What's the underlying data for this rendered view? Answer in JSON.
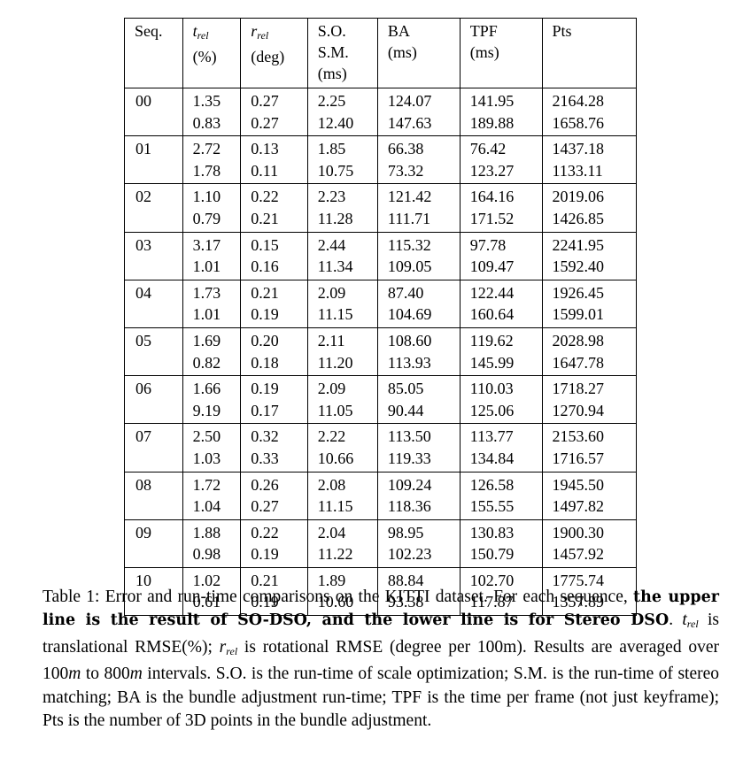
{
  "table": {
    "headers": [
      {
        "lines": [
          "Seq."
        ]
      },
      {
        "var": "t",
        "sub": "rel",
        "lines": [
          "(%)"
        ]
      },
      {
        "var": "r",
        "sub": "rel",
        "lines": [
          "(deg)"
        ]
      },
      {
        "lines": [
          "S.O.",
          "S.M.",
          "(ms)"
        ]
      },
      {
        "lines": [
          "BA",
          "(ms)"
        ]
      },
      {
        "lines": [
          "TPF",
          "(ms)"
        ]
      },
      {
        "lines": [
          "Pts"
        ]
      }
    ],
    "rows": [
      {
        "seq": "00",
        "upper": [
          {
            "v": "1.35",
            "b": false
          },
          {
            "v": "0.27",
            "b": false
          },
          {
            "v": "2.25",
            "b": true
          },
          {
            "v": "124.07",
            "b": true
          },
          {
            "v": "141.95",
            "b": true
          },
          {
            "v": "2164.28",
            "b": false
          }
        ],
        "lower": [
          {
            "v": "0.83",
            "b": true
          },
          {
            "v": "0.27",
            "b": false
          },
          {
            "v": "12.40",
            "b": false
          },
          {
            "v": "147.63",
            "b": false
          },
          {
            "v": "189.88",
            "b": false
          },
          {
            "v": "1658.76",
            "b": false
          }
        ]
      },
      {
        "seq": "01",
        "upper": [
          {
            "v": "2.72",
            "b": false
          },
          {
            "v": "0.13",
            "b": false
          },
          {
            "v": "1.85",
            "b": true
          },
          {
            "v": "66.38",
            "b": true
          },
          {
            "v": "76.42",
            "b": true
          },
          {
            "v": "1437.18",
            "b": false
          }
        ],
        "lower": [
          {
            "v": "1.78",
            "b": true
          },
          {
            "v": "0.11",
            "b": true
          },
          {
            "v": "10.75",
            "b": false
          },
          {
            "v": "73.32",
            "b": false
          },
          {
            "v": "123.27",
            "b": false
          },
          {
            "v": "1133.11",
            "b": false
          }
        ]
      },
      {
        "seq": "02",
        "upper": [
          {
            "v": "1.10",
            "b": false
          },
          {
            "v": "0.22",
            "b": false
          },
          {
            "v": "2.23",
            "b": true
          },
          {
            "v": "121.42",
            "b": false
          },
          {
            "v": "164.16",
            "b": true
          },
          {
            "v": "2019.06",
            "b": false
          }
        ],
        "lower": [
          {
            "v": "0.79",
            "b": true
          },
          {
            "v": "0.21",
            "b": true
          },
          {
            "v": "11.28",
            "b": false
          },
          {
            "v": "111.71",
            "b": true
          },
          {
            "v": "171.52",
            "b": false
          },
          {
            "v": "1426.85",
            "b": false
          }
        ]
      },
      {
        "seq": "03",
        "upper": [
          {
            "v": "3.17",
            "b": false
          },
          {
            "v": "0.15",
            "b": true
          },
          {
            "v": "2.44",
            "b": true
          },
          {
            "v": "115.32",
            "b": false
          },
          {
            "v": "97.78",
            "b": true
          },
          {
            "v": "2241.95",
            "b": false
          }
        ],
        "lower": [
          {
            "v": "1.01",
            "b": true
          },
          {
            "v": "0.16",
            "b": false
          },
          {
            "v": "11.34",
            "b": false
          },
          {
            "v": "109.05",
            "b": true
          },
          {
            "v": "109.47",
            "b": false
          },
          {
            "v": "1592.40",
            "b": false
          }
        ]
      },
      {
        "seq": "04",
        "upper": [
          {
            "v": "1.73",
            "b": false
          },
          {
            "v": "0.21",
            "b": false
          },
          {
            "v": "2.09",
            "b": true
          },
          {
            "v": "87.40",
            "b": true
          },
          {
            "v": "122.44",
            "b": true
          },
          {
            "v": "1926.45",
            "b": false
          }
        ],
        "lower": [
          {
            "v": "1.01",
            "b": true
          },
          {
            "v": "0.19",
            "b": true
          },
          {
            "v": "11.15",
            "b": false
          },
          {
            "v": "104.69",
            "b": false
          },
          {
            "v": "160.64",
            "b": false
          },
          {
            "v": "1599.01",
            "b": false
          }
        ]
      },
      {
        "seq": "05",
        "upper": [
          {
            "v": "1.69",
            "b": false
          },
          {
            "v": "0.20",
            "b": false
          },
          {
            "v": "2.11",
            "b": true
          },
          {
            "v": "108.60",
            "b": true
          },
          {
            "v": "119.62",
            "b": true
          },
          {
            "v": "2028.98",
            "b": false
          }
        ],
        "lower": [
          {
            "v": "0.82",
            "b": true
          },
          {
            "v": "0.18",
            "b": true
          },
          {
            "v": "11.20",
            "b": false
          },
          {
            "v": "113.93",
            "b": false
          },
          {
            "v": "145.99",
            "b": false
          },
          {
            "v": "1647.78",
            "b": false
          }
        ]
      },
      {
        "seq": "06",
        "upper": [
          {
            "v": "1.66",
            "b": true
          },
          {
            "v": "0.19",
            "b": false
          },
          {
            "v": "2.09",
            "b": true
          },
          {
            "v": "85.05",
            "b": true
          },
          {
            "v": "110.03",
            "b": true
          },
          {
            "v": "1718.27",
            "b": false
          }
        ],
        "lower": [
          {
            "v": "9.19",
            "b": false
          },
          {
            "v": "0.17",
            "b": true
          },
          {
            "v": "11.05",
            "b": false
          },
          {
            "v": "90.44",
            "b": false
          },
          {
            "v": "125.06",
            "b": false
          },
          {
            "v": "1270.94",
            "b": false
          }
        ]
      },
      {
        "seq": "07",
        "upper": [
          {
            "v": "2.50",
            "b": false
          },
          {
            "v": "0.32",
            "b": true
          },
          {
            "v": "2.22",
            "b": true
          },
          {
            "v": "113.50",
            "b": true
          },
          {
            "v": "113.77",
            "b": true
          },
          {
            "v": "2153.60",
            "b": false
          }
        ],
        "lower": [
          {
            "v": "1.03",
            "b": true
          },
          {
            "v": "0.33",
            "b": false
          },
          {
            "v": "10.66",
            "b": false
          },
          {
            "v": "119.33",
            "b": false
          },
          {
            "v": "134.84",
            "b": false
          },
          {
            "v": "1716.57",
            "b": false
          }
        ]
      },
      {
        "seq": "08",
        "upper": [
          {
            "v": "1.72",
            "b": false
          },
          {
            "v": "0.26",
            "b": true
          },
          {
            "v": "2.08",
            "b": true
          },
          {
            "v": "109.24",
            "b": true
          },
          {
            "v": "126.58",
            "b": true
          },
          {
            "v": "1945.50",
            "b": false
          }
        ],
        "lower": [
          {
            "v": "1.04",
            "b": true
          },
          {
            "v": "0.27",
            "b": false
          },
          {
            "v": "11.15",
            "b": false
          },
          {
            "v": "118.36",
            "b": false
          },
          {
            "v": "155.55",
            "b": false
          },
          {
            "v": "1497.82",
            "b": false
          }
        ]
      },
      {
        "seq": "09",
        "upper": [
          {
            "v": "1.88",
            "b": false
          },
          {
            "v": "0.22",
            "b": false
          },
          {
            "v": "2.04",
            "b": true
          },
          {
            "v": "98.95",
            "b": true
          },
          {
            "v": "130.83",
            "b": true
          },
          {
            "v": "1900.30",
            "b": false
          }
        ],
        "lower": [
          {
            "v": "0.98",
            "b": true
          },
          {
            "v": "0.19",
            "b": true
          },
          {
            "v": "11.22",
            "b": false
          },
          {
            "v": "102.23",
            "b": false
          },
          {
            "v": "150.79",
            "b": false
          },
          {
            "v": "1457.92",
            "b": false
          }
        ]
      },
      {
        "seq": "10",
        "upper": [
          {
            "v": "1.02",
            "b": false
          },
          {
            "v": "0.21",
            "b": false
          },
          {
            "v": "1.89",
            "b": true
          },
          {
            "v": "88.84",
            "b": true
          },
          {
            "v": "102.70",
            "b": true
          },
          {
            "v": "1775.74",
            "b": false
          }
        ],
        "lower": [
          {
            "v": "0.61",
            "b": true
          },
          {
            "v": "0.19",
            "b": true
          },
          {
            "v": "10.60",
            "b": false
          },
          {
            "v": "93.38",
            "b": false
          },
          {
            "v": "117.87",
            "b": false
          },
          {
            "v": "1357.89",
            "b": false
          }
        ]
      }
    ]
  },
  "caption": {
    "label": "Table 1:",
    "text1": " Error and run-time comparisons on the KITTI dataset. For each sequence, ",
    "bold": "the upper line is the result of SO-DSO, and the lower line is for Stereo DSO",
    "text2": ". ",
    "t_var": "t",
    "t_sub": "rel",
    "text3": " is translational RMSE(%); ",
    "r_var": "r",
    "r_sub": "rel",
    "text4": " is rotational RMSE (degree per 100m). Results are averaged over 100",
    "m1": "m",
    "text5": " to 800",
    "m2": "m",
    "text6": " intervals. S.O. is the run-time of scale optimization; S.M. is the run-time of stereo matching; BA is the bundle adjustment run-time; TPF is the time per frame (not just keyframe); Pts is the number of 3D points in the bundle adjustment."
  }
}
